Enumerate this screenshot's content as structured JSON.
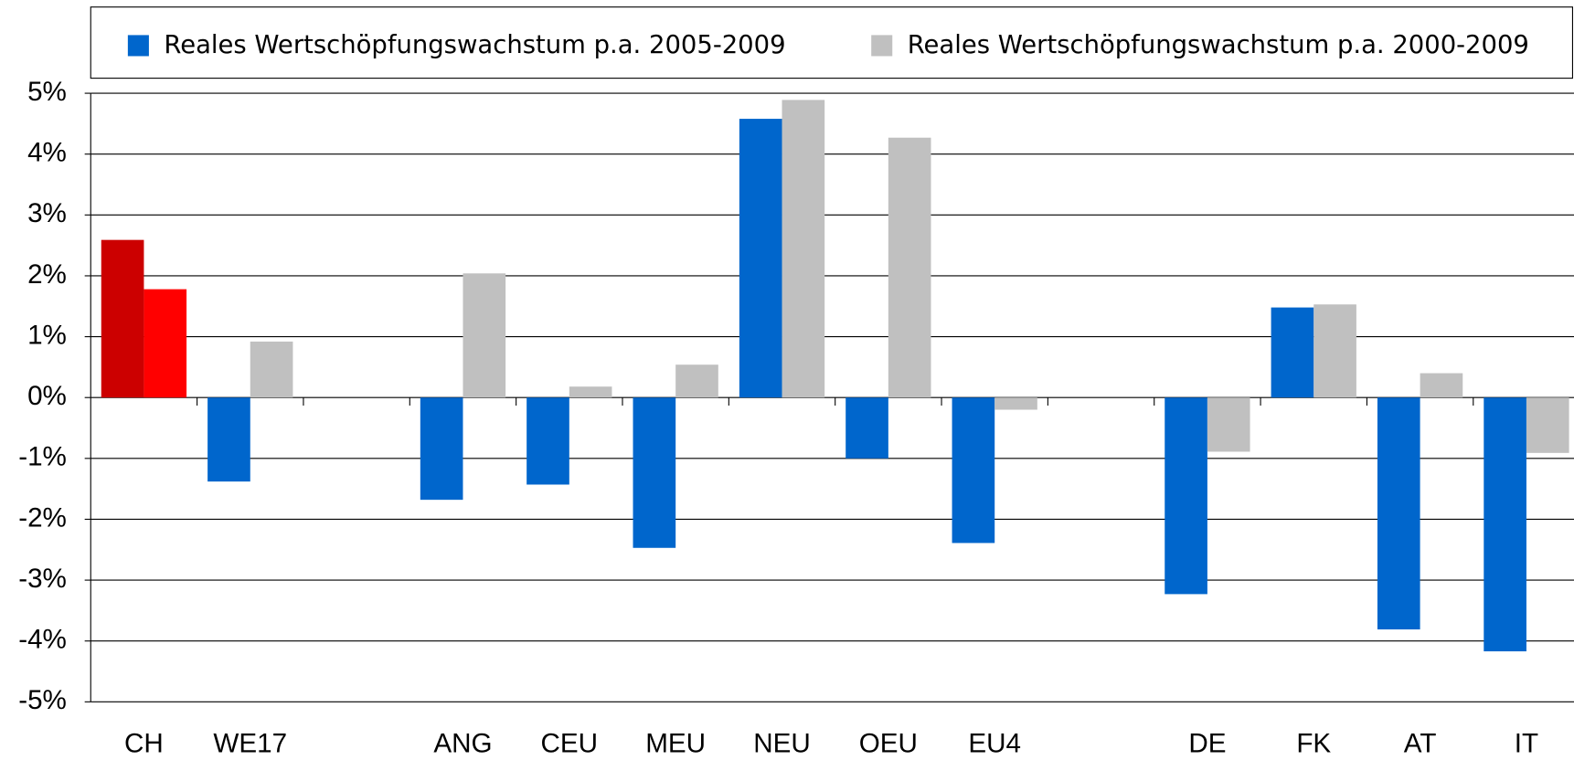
{
  "chart_data": {
    "type": "bar",
    "categories": [
      "CH",
      "WE17",
      null,
      "ANG",
      "CEU",
      "MEU",
      "NEU",
      "OEU",
      "EU4",
      null,
      "DE",
      "FK",
      "AT",
      "IT"
    ],
    "series": [
      {
        "name": "Reales Wertschöpfungswachstum p.a. 2005-2009",
        "color": "#0066cc",
        "colors": [
          "#cc0000",
          "#0066cc",
          null,
          "#0066cc",
          "#0066cc",
          "#0066cc",
          "#0066cc",
          "#0066cc",
          "#0066cc",
          null,
          "#0066cc",
          "#0066cc",
          "#0066cc",
          "#0066cc"
        ],
        "values": [
          2.59,
          -1.38,
          null,
          -1.68,
          -1.43,
          -2.47,
          4.58,
          -1.0,
          -2.39,
          null,
          -3.23,
          1.48,
          -3.81,
          -4.17
        ]
      },
      {
        "name": "Reales Wertschöpfungswachstum p.a. 2000-2009",
        "color": "#c0c0c0",
        "colors": [
          "#ff0000",
          "#c0c0c0",
          null,
          "#c0c0c0",
          "#c0c0c0",
          "#c0c0c0",
          "#c0c0c0",
          "#c0c0c0",
          "#c0c0c0",
          null,
          "#c0c0c0",
          "#c0c0c0",
          "#c0c0c0",
          "#c0c0c0"
        ],
        "values": [
          1.78,
          0.92,
          null,
          2.04,
          0.18,
          0.54,
          4.89,
          4.27,
          -0.2,
          null,
          -0.89,
          1.53,
          0.4,
          -0.91
        ]
      }
    ],
    "ylim": [
      -5,
      5
    ],
    "yticks": [
      {
        "value": -5,
        "label": "-5%"
      },
      {
        "value": -4,
        "label": "-4%"
      },
      {
        "value": -3,
        "label": "-3%"
      },
      {
        "value": -2,
        "label": "-2%"
      },
      {
        "value": -1,
        "label": "-1%"
      },
      {
        "value": 0,
        "label": "0%"
      },
      {
        "value": 1,
        "label": "1%"
      },
      {
        "value": 2,
        "label": "2%"
      },
      {
        "value": 3,
        "label": "3%"
      },
      {
        "value": 4,
        "label": "4%"
      },
      {
        "value": 5,
        "label": "5%"
      }
    ],
    "grid": true,
    "legend": "top"
  }
}
